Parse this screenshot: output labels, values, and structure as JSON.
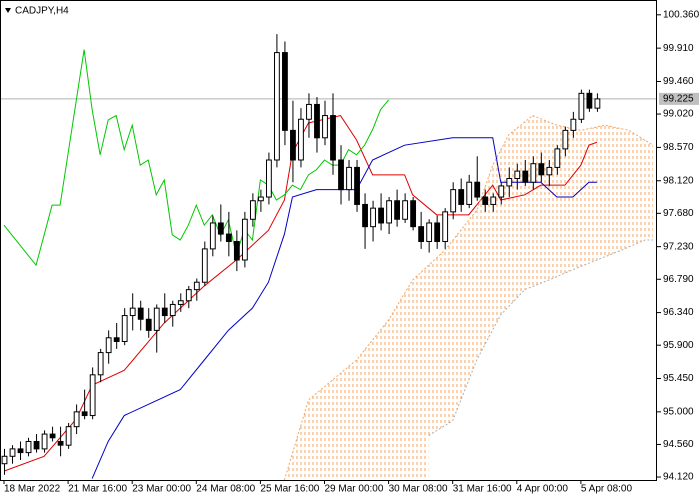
{
  "chart_data": {
    "type": "candlestick",
    "title": "CADJPY,H4",
    "ylim": [
      94.08,
      100.56
    ],
    "yticks": [
      {
        "value": 100.36,
        "label": "100.360"
      },
      {
        "value": 99.91,
        "label": "99.910"
      },
      {
        "value": 99.46,
        "label": "99.460"
      },
      {
        "value": 99.02,
        "label": "99.020"
      },
      {
        "value": 98.57,
        "label": "98.570"
      },
      {
        "value": 98.12,
        "label": "98.120"
      },
      {
        "value": 97.68,
        "label": "97.680"
      },
      {
        "value": 97.23,
        "label": "97.230"
      },
      {
        "value": 96.79,
        "label": "96.790"
      },
      {
        "value": 96.34,
        "label": "96.340"
      },
      {
        "value": 95.9,
        "label": "95.900"
      },
      {
        "value": 95.45,
        "label": "95.450"
      },
      {
        "value": 95.0,
        "label": "95.000"
      },
      {
        "value": 94.56,
        "label": "94.560"
      },
      {
        "value": 94.12,
        "label": "94.120"
      }
    ],
    "xlim": [
      -0.5,
      81.5
    ],
    "xticks": [
      {
        "value": 0,
        "label": "18 Mar 2022"
      },
      {
        "value": 8,
        "label": "21 Mar 16:00"
      },
      {
        "value": 16,
        "label": "23 Mar 00:00"
      },
      {
        "value": 24,
        "label": "24 Mar 08:00"
      },
      {
        "value": 32,
        "label": "25 Mar 16:00"
      },
      {
        "value": 40,
        "label": "29 Mar 00:00"
      },
      {
        "value": 48,
        "label": "30 Mar 08:00"
      },
      {
        "value": 56,
        "label": "31 Mar 16:00"
      },
      {
        "value": 64,
        "label": "4 Apr 00:00"
      },
      {
        "value": 72,
        "label": "5 Apr 08:00"
      }
    ],
    "last_price": 99.225,
    "ohlc": [
      [
        94.3,
        94.5,
        94.15,
        94.4
      ],
      [
        94.4,
        94.55,
        94.3,
        94.5
      ],
      [
        94.5,
        94.6,
        94.35,
        94.45
      ],
      [
        94.45,
        94.65,
        94.4,
        94.6
      ],
      [
        94.6,
        94.7,
        94.45,
        94.5
      ],
      [
        94.5,
        94.75,
        94.45,
        94.7
      ],
      [
        94.7,
        94.8,
        94.6,
        94.65
      ],
      [
        94.6,
        94.8,
        94.4,
        94.55
      ],
      [
        94.55,
        94.85,
        94.5,
        94.8
      ],
      [
        94.8,
        95.1,
        94.7,
        95.0
      ],
      [
        95.0,
        95.3,
        94.9,
        94.95
      ],
      [
        94.95,
        95.6,
        94.9,
        95.5
      ],
      [
        95.5,
        95.85,
        95.4,
        95.8
      ],
      [
        95.8,
        96.1,
        95.65,
        96.0
      ],
      [
        96.0,
        96.2,
        95.85,
        95.95
      ],
      [
        95.95,
        96.4,
        95.9,
        96.3
      ],
      [
        96.3,
        96.6,
        96.1,
        96.4
      ],
      [
        96.4,
        96.5,
        96.1,
        96.25
      ],
      [
        96.25,
        96.4,
        96.0,
        96.1
      ],
      [
        96.1,
        96.45,
        95.8,
        96.4
      ],
      [
        96.4,
        96.6,
        96.2,
        96.3
      ],
      [
        96.3,
        96.5,
        96.15,
        96.45
      ],
      [
        96.45,
        96.6,
        96.35,
        96.5
      ],
      [
        96.5,
        96.7,
        96.4,
        96.65
      ],
      [
        96.65,
        96.8,
        96.5,
        96.75
      ],
      [
        96.75,
        97.3,
        96.7,
        97.2
      ],
      [
        97.2,
        97.65,
        97.1,
        97.55
      ],
      [
        97.55,
        97.8,
        97.3,
        97.4
      ],
      [
        97.4,
        97.7,
        97.1,
        97.3
      ],
      [
        97.3,
        97.45,
        96.9,
        97.05
      ],
      [
        97.05,
        97.7,
        96.95,
        97.6
      ],
      [
        97.6,
        97.95,
        97.5,
        97.85
      ],
      [
        97.85,
        98.0,
        97.7,
        97.9
      ],
      [
        97.9,
        98.5,
        97.8,
        98.4
      ],
      [
        98.4,
        100.1,
        98.3,
        99.85
      ],
      [
        99.85,
        100.0,
        98.6,
        98.8
      ],
      [
        98.8,
        99.2,
        98.1,
        98.4
      ],
      [
        98.4,
        99.1,
        98.3,
        98.95
      ],
      [
        98.95,
        99.3,
        98.7,
        99.15
      ],
      [
        99.15,
        99.25,
        98.5,
        98.7
      ],
      [
        98.7,
        99.2,
        98.6,
        99.0
      ],
      [
        99.0,
        99.3,
        98.2,
        98.4
      ],
      [
        98.4,
        98.6,
        97.8,
        98.0
      ],
      [
        98.0,
        98.4,
        97.85,
        98.3
      ],
      [
        98.3,
        98.4,
        97.7,
        97.8
      ],
      [
        97.8,
        97.95,
        97.2,
        97.5
      ],
      [
        97.5,
        97.85,
        97.3,
        97.75
      ],
      [
        97.75,
        97.95,
        97.45,
        97.55
      ],
      [
        97.55,
        97.9,
        97.4,
        97.85
      ],
      [
        97.85,
        98.0,
        97.5,
        97.6
      ],
      [
        97.6,
        97.95,
        97.55,
        97.85
      ],
      [
        97.85,
        97.9,
        97.45,
        97.5
      ],
      [
        97.5,
        97.7,
        97.2,
        97.3
      ],
      [
        97.3,
        97.6,
        97.15,
        97.55
      ],
      [
        97.55,
        97.65,
        97.2,
        97.3
      ],
      [
        97.3,
        97.75,
        97.2,
        97.7
      ],
      [
        97.7,
        98.1,
        97.6,
        98.0
      ],
      [
        98.0,
        98.15,
        97.7,
        97.8
      ],
      [
        97.8,
        98.2,
        97.75,
        98.1
      ],
      [
        98.1,
        98.45,
        97.85,
        97.9
      ],
      [
        97.9,
        98.0,
        97.7,
        97.8
      ],
      [
        97.8,
        97.95,
        97.7,
        97.9
      ],
      [
        97.9,
        98.1,
        97.8,
        98.05
      ],
      [
        98.05,
        98.3,
        97.9,
        98.15
      ],
      [
        98.15,
        98.35,
        98.0,
        98.25
      ],
      [
        98.25,
        98.4,
        98.05,
        98.1
      ],
      [
        98.1,
        98.45,
        98.0,
        98.35
      ],
      [
        98.35,
        98.5,
        98.1,
        98.2
      ],
      [
        98.2,
        98.4,
        98.05,
        98.3
      ],
      [
        98.3,
        98.6,
        98.2,
        98.55
      ],
      [
        98.55,
        98.85,
        98.45,
        98.8
      ],
      [
        98.8,
        99.05,
        98.7,
        98.95
      ],
      [
        98.95,
        99.35,
        98.9,
        99.3
      ],
      [
        99.3,
        99.35,
        99.05,
        99.1
      ],
      [
        99.1,
        99.3,
        99.05,
        99.225
      ]
    ],
    "series": [
      {
        "color": "#e00000",
        "dash": false,
        "x": [
          0,
          5,
          9,
          11,
          15,
          20,
          25,
          29,
          33,
          35,
          36,
          38,
          42,
          44,
          46,
          50,
          51,
          54,
          58,
          61,
          62,
          65,
          67,
          70,
          72,
          73,
          74
        ],
        "values": [
          94.2,
          94.4,
          94.9,
          95.36,
          95.56,
          96.2,
          96.7,
          97.05,
          97.45,
          97.86,
          98.5,
          98.9,
          99.0,
          98.67,
          98.2,
          98.2,
          97.93,
          97.66,
          97.66,
          98.06,
          97.86,
          97.93,
          98.06,
          98.06,
          98.33,
          98.6,
          98.64
        ]
      },
      {
        "color": "#0000c8",
        "dash": false,
        "x": [
          11,
          13,
          15,
          18,
          22,
          25,
          28,
          31,
          33,
          35,
          36,
          39,
          44,
          46,
          50,
          56,
          61,
          62,
          67,
          69,
          71,
          73,
          74
        ],
        "values": [
          94.1,
          94.6,
          94.95,
          95.1,
          95.3,
          95.7,
          96.1,
          96.4,
          96.75,
          97.4,
          97.9,
          98.0,
          98.0,
          98.4,
          98.6,
          98.7,
          98.7,
          98.1,
          98.1,
          97.9,
          97.9,
          98.1,
          98.1
        ]
      },
      {
        "color": "#00c800",
        "dash": false,
        "x": [
          0,
          2,
          4,
          6,
          7,
          10,
          11,
          12,
          13,
          14,
          15,
          16,
          17,
          18,
          19,
          20,
          21,
          22,
          23,
          24,
          25,
          26,
          27,
          28,
          29,
          30,
          31,
          32,
          33,
          34,
          35,
          36,
          37,
          38,
          39,
          40,
          41,
          42,
          43,
          44,
          45,
          46,
          47,
          48
        ],
        "values": [
          97.52,
          97.25,
          96.98,
          97.79,
          97.79,
          99.89,
          99.08,
          98.47,
          98.94,
          99.0,
          98.54,
          98.87,
          98.33,
          98.4,
          97.93,
          98.13,
          97.39,
          97.32,
          97.52,
          97.79,
          97.52,
          97.66,
          97.39,
          97.59,
          97.12,
          97.46,
          97.32,
          98.13,
          98.06,
          97.86,
          97.93,
          98.06,
          98.0,
          98.2,
          98.27,
          98.4,
          98.33,
          98.33,
          98.54,
          98.47,
          98.6,
          98.81,
          99.08,
          99.21
        ]
      },
      {
        "color": "#f4a460",
        "dash": true,
        "x": [
          35,
          38,
          41,
          44,
          48,
          51,
          55,
          59,
          61,
          63,
          66,
          69,
          72,
          75,
          78,
          81
        ],
        "values": [
          94.08,
          95.16,
          95.43,
          95.7,
          96.24,
          96.78,
          97.18,
          97.72,
          98.33,
          98.74,
          99.0,
          98.87,
          98.8,
          98.87,
          98.8,
          98.6
        ]
      },
      {
        "color": "#b0b0b0",
        "dash": true,
        "x": [
          53,
          56,
          59,
          62,
          65,
          68,
          71,
          74,
          77,
          80,
          81
        ],
        "values": [
          94.68,
          94.88,
          95.7,
          96.31,
          96.65,
          96.78,
          96.92,
          97.05,
          97.18,
          97.32,
          97.32
        ]
      }
    ]
  }
}
